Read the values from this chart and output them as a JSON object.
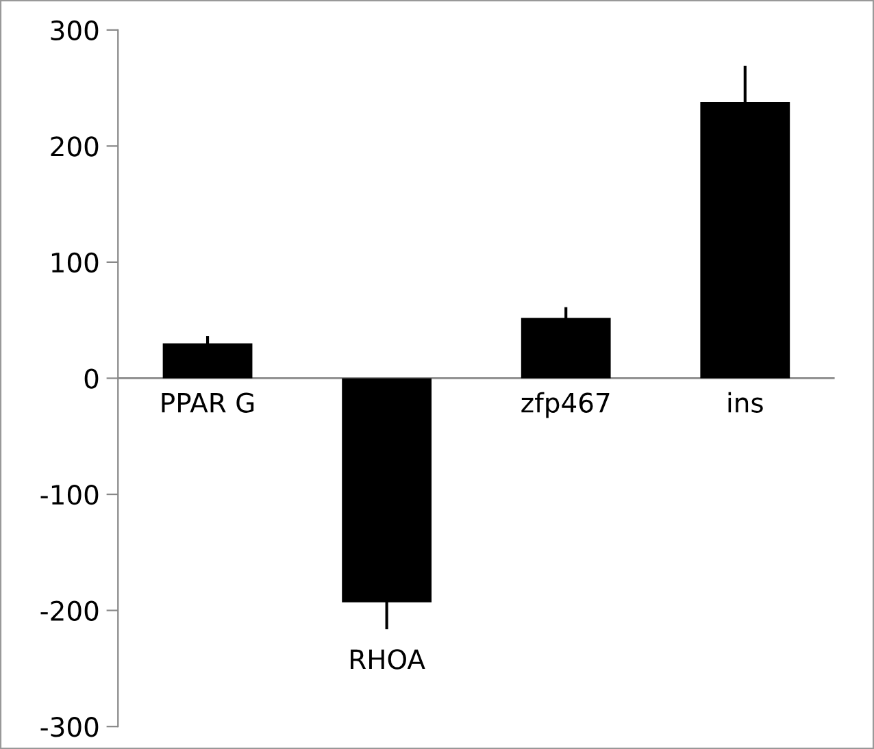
{
  "chart_data": {
    "type": "bar",
    "categories": [
      "PPAR G",
      "RHOA",
      "zfp467",
      "ins"
    ],
    "values": [
      30,
      -193,
      52,
      238
    ],
    "errors": [
      [
        30,
        35
      ],
      [
        -215,
        -193
      ],
      [
        52,
        60
      ],
      [
        238,
        268
      ]
    ],
    "color": "#000000",
    "ylim": [
      -300,
      300
    ],
    "yticks": [
      -300,
      -200,
      -100,
      0,
      100,
      200,
      300
    ],
    "grid": false
  }
}
